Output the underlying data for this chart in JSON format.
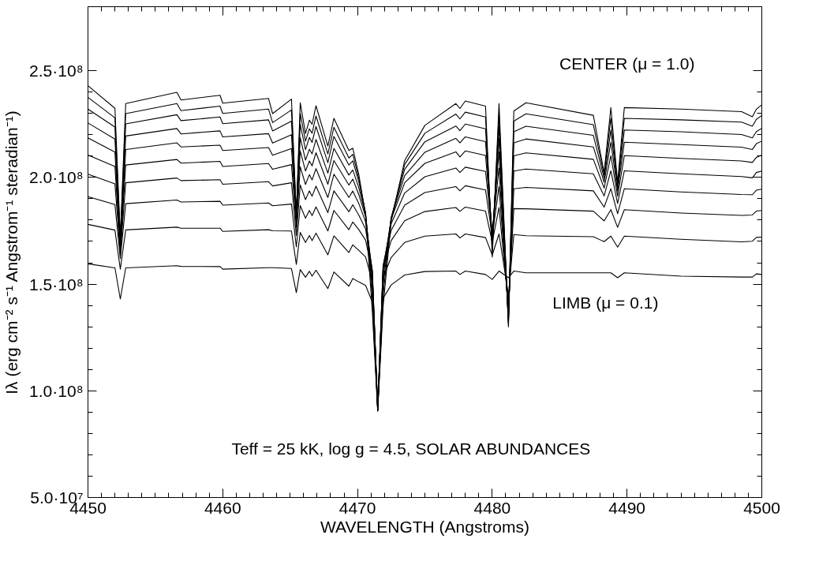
{
  "chart_data": {
    "type": "line",
    "xlabel": "WAVELENGTH (Angstroms)",
    "ylabel": "Iλ (erg cm⁻² s⁻¹ Angstrom⁻¹ steradian⁻¹)",
    "annotations": [
      "CENTER (μ = 1.0)",
      "LIMB (μ = 0.1)",
      "Teff = 25 kK, log g = 4.5, SOLAR ABUNDANCES"
    ],
    "x": [
      4450,
      4452.0,
      4452.4,
      4452.8,
      4456.6,
      4456.9,
      4459.8,
      4460.0,
      4463.4,
      4463.7,
      4465.1,
      4465.46,
      4465.75,
      4466.14,
      4466.43,
      4466.63,
      4466.92,
      4467.8,
      4468.25,
      4469.36,
      4469.65,
      4470.1,
      4470.6,
      4471.1,
      4471.5,
      4471.9,
      4472.5,
      4473.5,
      4475.0,
      4477.3,
      4477.6,
      4478.0,
      4479.5,
      4480.0,
      4480.5,
      4481.2,
      4481.6,
      4482.5,
      4487.5,
      4488.3,
      4488.8,
      4489.3,
      4489.8,
      4494.0,
      4498.5,
      4499.3,
      4499.6,
      4500
    ],
    "series": [
      {
        "color": "#000000",
        "values": [
          243000000.0,
          232400000.0,
          172000000.0,
          234600000.0,
          239900000.0,
          236300000.0,
          238500000.0,
          234800000.0,
          237000000.0,
          229900000.0,
          236700000.0,
          182300000.0,
          235000000.0,
          220600000.0,
          226800000.0,
          224900000.0,
          233600000.0,
          214700000.0,
          227700000.0,
          212600000.0,
          213700000.0,
          201200000.0,
          182300000.0,
          137300000.0,
          90500000.0,
          139400000.0,
          179500000.0,
          207900000.0,
          224400000.0,
          234600000.0,
          232300000.0,
          235800000.0,
          233400000.0,
          162700000.0,
          234600000.0,
          130000000.0,
          231100000.0,
          235000000.0,
          229100000.0,
          202100000.0,
          232700000.0,
          197400000.0,
          232700000.0,
          232000000.0,
          230800000.0,
          228400000.0,
          232000000.0,
          234000000.0
        ]
      },
      {
        "color": "#000000",
        "values": [
          237500000.0,
          227900000.0,
          170000000.0,
          229900000.0,
          234600000.0,
          231300000.0,
          233400000.0,
          230000000.0,
          232000000.0,
          225700000.0,
          231600000.0,
          182500000.0,
          230000000.0,
          217000000.0,
          222800000.0,
          220700000.0,
          228800000.0,
          211000000.0,
          223500000.0,
          209100000.0,
          210800000.0,
          199600000.0,
          183000000.0,
          142700000.0,
          90500000.0,
          144700000.0,
          180700000.0,
          206100000.0,
          220700000.0,
          229700000.0,
          227400000.0,
          230600000.0,
          228300000.0,
          166500000.0,
          229700000.0,
          131000000.0,
          226400000.0,
          229800000.0,
          224700000.0,
          201300000.0,
          227700000.0,
          196700000.0,
          227700000.0,
          227000000.0,
          225900000.0,
          224000000.0,
          227200000.0,
          229000000.0
        ]
      },
      {
        "color": "#000000",
        "values": [
          232000000.0,
          223600000.0,
          169000000.0,
          225100000.0,
          229400000.0,
          226600000.0,
          228300000.0,
          225200000.0,
          227000000.0,
          221800000.0,
          226400000.0,
          182300000.0,
          225000000.0,
          213000000.0,
          218700000.0,
          216400000.0,
          223900000.0,
          206900000.0,
          219200000.0,
          205800000.0,
          207800000.0,
          197900000.0,
          183400000.0,
          147400000.0,
          91000000.0,
          149400000.0,
          181200000.0,
          203800000.0,
          216700000.0,
          224100000.0,
          221900000.0,
          225000000.0,
          222800000.0,
          169400000.0,
          224100000.0,
          132000000.0,
          221400000.0,
          224000000.0,
          219700000.0,
          199600000.0,
          222200000.0,
          195300000.0,
          222200000.0,
          221400000.0,
          220100000.0,
          218500000.0,
          221500000.0,
          223000000.0
        ]
      },
      {
        "color": "#000000",
        "values": [
          225500000.0,
          218000000.0,
          168000000.0,
          219400000.0,
          222900000.0,
          220400000.0,
          221800000.0,
          219000000.0,
          220500000.0,
          216100000.0,
          220000000.0,
          181100000.0,
          218700000.0,
          208100000.0,
          213200000.0,
          211000000.0,
          217800000.0,
          202000000.0,
          213600000.0,
          201100000.0,
          203500000.0,
          195100000.0,
          182600000.0,
          151100000.0,
          91000000.0,
          153200000.0,
          181100000.0,
          200800000.0,
          211800000.0,
          218300000.0,
          216200000.0,
          219000000.0,
          216800000.0,
          171900000.0,
          218300000.0,
          133000000.0,
          216200000.0,
          218000000.0,
          214300000.0,
          197700000.0,
          216500000.0,
          193600000.0,
          216500000.0,
          215400000.0,
          214200000.0,
          213100000.0,
          215800000.0,
          217000000.0
        ]
      },
      {
        "color": "#000000",
        "values": [
          218500000.0,
          211900000.0,
          167000000.0,
          213100000.0,
          216200000.0,
          214300000.0,
          215100000.0,
          212600000.0,
          214000000.0,
          210400000.0,
          213500000.0,
          179300000.0,
          212400000.0,
          203000000.0,
          207700000.0,
          205400000.0,
          211600000.0,
          196800000.0,
          207900000.0,
          196400000.0,
          199200000.0,
          191900000.0,
          181500000.0,
          154100000.0,
          91000000.0,
          156300000.0,
          180400000.0,
          197500000.0,
          206600000.0,
          212000000.0,
          209600000.0,
          212400000.0,
          210300000.0,
          173500000.0,
          212000000.0,
          134000000.0,
          210100000.0,
          211500000.0,
          208500000.0,
          195000000.0,
          210200000.0,
          191200000.0,
          210200000.0,
          208900000.0,
          207700000.0,
          207000000.0,
          209400000.0,
          210500000.0
        ]
      },
      {
        "color": "#000000",
        "values": [
          210500000.0,
          205100000.0,
          166000000.0,
          205800000.0,
          208400000.0,
          206700000.0,
          207500000.0,
          205100000.0,
          206500000.0,
          203800000.0,
          206000000.0,
          176700000.0,
          205000000.0,
          196700000.0,
          201300000.0,
          198800000.0,
          204100000.0,
          190600000.0,
          201500000.0,
          190600000.0,
          193600000.0,
          187700000.0,
          179200000.0,
          156100000.0,
          91000000.0,
          158400000.0,
          178300000.0,
          192700000.0,
          200300000.0,
          204400000.0,
          202300000.0,
          204800000.0,
          202800000.0,
          173700000.0,
          204400000.0,
          135000000.0,
          203000000.0,
          203900000.0,
          201700000.0,
          191300000.0,
          203100000.0,
          187800000.0,
          203100000.0,
          201700000.0,
          200400000.0,
          199800000.0,
          202300000.0,
          203000000.0
        ]
      },
      {
        "color": "#000000",
        "values": [
          201500000.0,
          197000000.0,
          164000000.0,
          197500000.0,
          199700000.0,
          198500000.0,
          198900000.0,
          196800000.0,
          198000000.0,
          196000000.0,
          197500000.0,
          172800000.0,
          196500000.0,
          189600000.0,
          193700000.0,
          191200000.0,
          195900000.0,
          183500000.0,
          193700000.0,
          183900000.0,
          187200000.0,
          182300000.0,
          175800000.0,
          156600000.0,
          91500000.0,
          158800000.0,
          175200000.0,
          187000000.0,
          192900000.0,
          195700000.0,
          193700000.0,
          196100000.0,
          194100000.0,
          172600000.0,
          195700000.0,
          137000000.0,
          194700000.0,
          195300000.0,
          193700000.0,
          186100000.0,
          194700000.0,
          183000000.0,
          194700000.0,
          193200000.0,
          192000000.0,
          191900000.0,
          194000000.0,
          194500000.0
        ]
      },
      {
        "color": "#000000",
        "values": [
          191000000.0,
          187300000.0,
          162000000.0,
          187700000.0,
          189400000.0,
          188500000.0,
          188800000.0,
          187000000.0,
          188000000.0,
          186700000.0,
          187500000.0,
          167400000.0,
          186800000.0,
          180900000.0,
          184500000.0,
          182100000.0,
          186200000.0,
          174900000.0,
          184500000.0,
          175500000.0,
          179100000.0,
          175500000.0,
          170600000.0,
          155400000.0,
          91500000.0,
          157500000.0,
          170400000.0,
          179700000.0,
          184000000.0,
          185900000.0,
          184100000.0,
          186100000.0,
          184200000.0,
          169700000.0,
          185900000.0,
          140000000.0,
          185400000.0,
          185300000.0,
          184200000.0,
          179600000.0,
          184900000.0,
          176600000.0,
          184900000.0,
          183300000.0,
          182200000.0,
          182400000.0,
          184200000.0,
          184500000.0
        ]
      },
      {
        "color": "#000000",
        "values": [
          178000000.0,
          175300000.0,
          157000000.0,
          175400000.0,
          176700000.0,
          176200000.0,
          176200000.0,
          174700000.0,
          175500000.0,
          175000000.0,
          174900000.0,
          159200000.0,
          174200000.0,
          169500000.0,
          172800000.0,
          170400000.0,
          173900000.0,
          163700000.0,
          172600000.0,
          164800000.0,
          168400000.0,
          165800000.0,
          162700000.0,
          151100000.0,
          92000000.0,
          153100000.0,
          162500000.0,
          169500000.0,
          172500000.0,
          173500000.0,
          171600000.0,
          173500000.0,
          171800000.0,
          163600000.0,
          173500000.0,
          145000000.0,
          173200000.0,
          172700000.0,
          172200000.0,
          169900000.0,
          172500000.0,
          167300000.0,
          172500000.0,
          171000000.0,
          169800000.0,
          170100000.0,
          171900000.0,
          172000000.0
        ]
      },
      {
        "color": "#000000",
        "values": [
          159500000.0,
          157600000.0,
          143000000.0,
          157600000.0,
          158600000.0,
          158300000.0,
          158200000.0,
          157000000.0,
          157700000.0,
          157700000.0,
          157300000.0,
          146000000.0,
          156800000.0,
          153200000.0,
          156000000.0,
          153700000.0,
          156500000.0,
          147900000.0,
          155700000.0,
          149000000.0,
          152600000.0,
          151000000.0,
          149400000.0,
          141600000.0,
          92000000.0,
          143400000.0,
          149600000.0,
          154300000.0,
          155900000.0,
          156100000.0,
          154500000.0,
          156100000.0,
          154500000.0,
          152200000.0,
          156100000.0,
          153000000.0,
          156100000.0,
          155300000.0,
          155300000.0,
          155300000.0,
          155300000.0,
          153000000.0,
          155300000.0,
          153700000.0,
          153300000.0,
          153300000.0,
          154800000.0,
          154500000.0
        ]
      }
    ],
    "xlim": [
      4450,
      4500
    ],
    "ylim": [
      50000000.0,
      280000000.0
    ],
    "xticks": [
      4450,
      4460,
      4470,
      4480,
      4490,
      4500
    ],
    "yticks": [
      {
        "value": 50000000.0,
        "label": "5.0·10⁷"
      },
      {
        "value": 100000000.0,
        "label": "1.0·10⁸"
      },
      {
        "value": 150000000.0,
        "label": "1.5·10⁸"
      },
      {
        "value": 200000000.0,
        "label": "2.0·10⁸"
      },
      {
        "value": 250000000.0,
        "label": "2.5·10⁸"
      }
    ],
    "grid": false,
    "marker": "none",
    "line_style": "solid"
  }
}
